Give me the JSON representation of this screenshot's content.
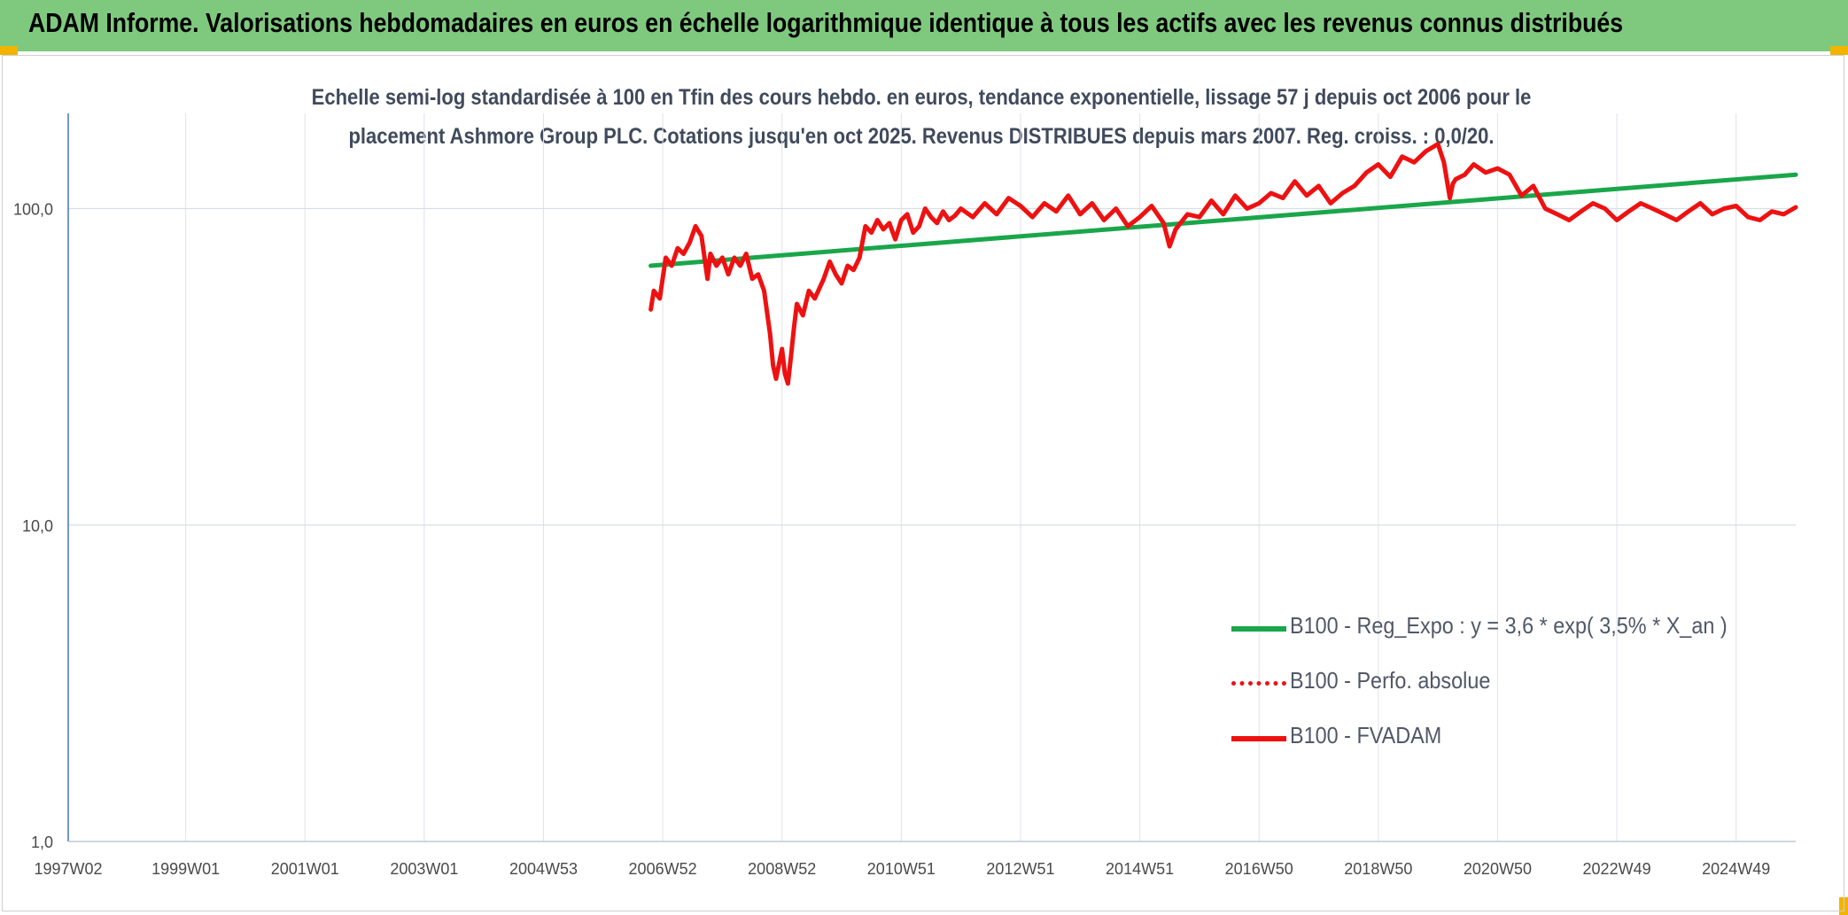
{
  "banner": {
    "title": "ADAM Informe. Valorisations hebdomadaires en euros en échelle logarithmique identique à tous les actifs avec les revenus connus distribués",
    "color": "#7fc97f"
  },
  "chart_data": {
    "type": "line",
    "title_lines": [
      "Echelle semi-log standardisée à 100 en Tfin des cours hebdo. en euros, tendance exponentielle, lissage 57 j depuis oct 2006 pour le",
      "placement Ashmore Group PLC. Cotations jusqu'en oct 2025. Revenus DISTRIBUES depuis mars 2007. Reg. croiss. : 0,0/20."
    ],
    "xlabel": "",
    "ylabel": "",
    "y_scale": "log",
    "ylim": [
      1,
      200
    ],
    "xlim": [
      1997.03,
      2026.0
    ],
    "grid": true,
    "legend_position": "bottom-right",
    "y_ticks": [
      {
        "value": 1,
        "label": "1,0"
      },
      {
        "value": 10,
        "label": "10,0"
      },
      {
        "value": 100,
        "label": "100,0"
      }
    ],
    "x_ticks": [
      {
        "value": 1997.03,
        "label": "1997W02"
      },
      {
        "value": 1999.0,
        "label": "1999W01"
      },
      {
        "value": 2001.0,
        "label": "2001W01"
      },
      {
        "value": 2003.0,
        "label": "2003W01"
      },
      {
        "value": 2005.0,
        "label": "2004W53"
      },
      {
        "value": 2007.0,
        "label": "2006W52"
      },
      {
        "value": 2009.0,
        "label": "2008W52"
      },
      {
        "value": 2011.0,
        "label": "2010W51"
      },
      {
        "value": 2013.0,
        "label": "2012W51"
      },
      {
        "value": 2015.0,
        "label": "2014W51"
      },
      {
        "value": 2017.0,
        "label": "2016W50"
      },
      {
        "value": 2019.0,
        "label": "2018W50"
      },
      {
        "value": 2021.0,
        "label": "2020W50"
      },
      {
        "value": 2023.0,
        "label": "2022W49"
      },
      {
        "value": 2025.0,
        "label": "2024W49"
      }
    ],
    "series": [
      {
        "name": "B100 - Reg_Expo : y = 3,6 * exp( 3,5% *  X_an )",
        "color": "#1aa64a",
        "style": "solid",
        "x": [
          2006.8,
          2026.0
        ],
        "y": [
          66,
          128
        ]
      },
      {
        "name": "B100 - Perfo. absolue",
        "color": "#ee1111",
        "style": "dotted",
        "x": [],
        "y": []
      },
      {
        "name": "B100 - FVADAM",
        "color": "#ee1111",
        "style": "solid",
        "x": [
          2006.8,
          2006.85,
          2006.95,
          2007.05,
          2007.15,
          2007.25,
          2007.35,
          2007.45,
          2007.55,
          2007.65,
          2007.75,
          2007.8,
          2007.9,
          2008.0,
          2008.1,
          2008.2,
          2008.3,
          2008.4,
          2008.5,
          2008.6,
          2008.7,
          2008.8,
          2008.85,
          2008.9,
          2009.0,
          2009.05,
          2009.1,
          2009.15,
          2009.2,
          2009.25,
          2009.35,
          2009.45,
          2009.55,
          2009.7,
          2009.8,
          2009.9,
          2010.0,
          2010.1,
          2010.2,
          2010.3,
          2010.4,
          2010.5,
          2010.6,
          2010.7,
          2010.8,
          2010.9,
          2011.0,
          2011.1,
          2011.2,
          2011.3,
          2011.4,
          2011.5,
          2011.6,
          2011.7,
          2011.8,
          2011.9,
          2012.0,
          2012.2,
          2012.4,
          2012.6,
          2012.8,
          2013.0,
          2013.2,
          2013.4,
          2013.6,
          2013.8,
          2014.0,
          2014.2,
          2014.4,
          2014.6,
          2014.8,
          2015.0,
          2015.2,
          2015.4,
          2015.5,
          2015.6,
          2015.8,
          2016.0,
          2016.2,
          2016.4,
          2016.6,
          2016.8,
          2017.0,
          2017.2,
          2017.4,
          2017.6,
          2017.8,
          2018.0,
          2018.2,
          2018.4,
          2018.6,
          2018.8,
          2019.0,
          2019.2,
          2019.4,
          2019.6,
          2019.8,
          2020.0,
          2020.1,
          2020.2,
          2020.25,
          2020.3,
          2020.45,
          2020.6,
          2020.8,
          2021.0,
          2021.2,
          2021.4,
          2021.6,
          2021.8,
          2022.0,
          2022.2,
          2022.4,
          2022.6,
          2022.8,
          2023.0,
          2023.2,
          2023.4,
          2023.6,
          2023.8,
          2024.0,
          2024.2,
          2024.4,
          2024.6,
          2024.8,
          2025.0,
          2025.2,
          2025.4,
          2025.6,
          2025.8,
          2026.0
        ],
        "y": [
          48,
          55,
          52,
          70,
          66,
          75,
          72,
          78,
          88,
          82,
          60,
          72,
          66,
          70,
          62,
          70,
          66,
          72,
          60,
          62,
          55,
          40,
          32,
          29,
          36,
          30,
          28,
          34,
          42,
          50,
          46,
          55,
          52,
          60,
          68,
          62,
          58,
          66,
          64,
          70,
          88,
          84,
          92,
          86,
          90,
          80,
          92,
          96,
          84,
          88,
          100,
          94,
          90,
          98,
          92,
          95,
          100,
          94,
          104,
          96,
          108,
          102,
          94,
          104,
          98,
          110,
          96,
          104,
          92,
          100,
          88,
          94,
          102,
          90,
          76,
          86,
          96,
          94,
          106,
          96,
          110,
          100,
          104,
          112,
          108,
          122,
          110,
          118,
          104,
          112,
          118,
          130,
          138,
          126,
          146,
          140,
          152,
          160,
          140,
          108,
          120,
          124,
          128,
          138,
          130,
          134,
          128,
          110,
          118,
          100,
          96,
          92,
          98,
          104,
          100,
          92,
          98,
          104,
          100,
          96,
          92,
          98,
          104,
          96,
          100,
          102,
          94,
          92,
          98,
          96,
          101
        ]
      }
    ]
  }
}
